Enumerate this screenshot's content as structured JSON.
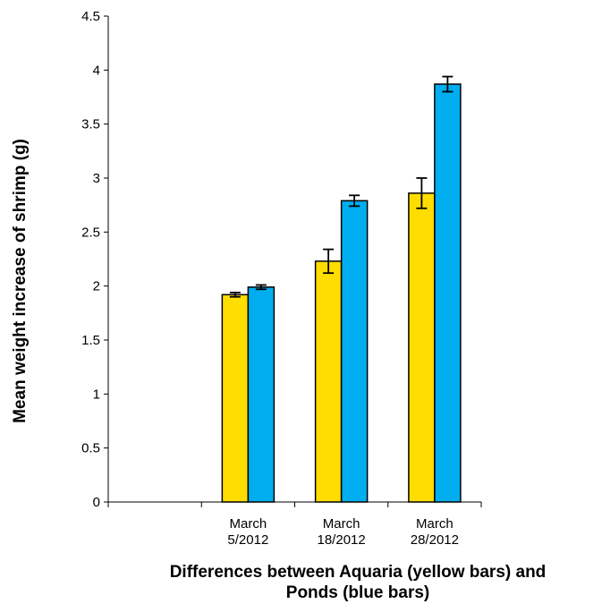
{
  "chart_data": {
    "type": "bar",
    "title": "",
    "xlabel_lines": [
      "Differences between Aquaria (yellow bars) and",
      "Ponds (blue bars)"
    ],
    "ylabel": "Mean weight increase of shrimp (g)",
    "ylim": [
      0,
      4.5
    ],
    "yticks": [
      "0",
      "0.5",
      "1",
      "1.5",
      "2",
      "2.5",
      "3",
      "3.5",
      "4",
      "4.5"
    ],
    "categories": [
      {
        "lines": [
          "",
          ""
        ]
      },
      {
        "lines": [
          "March",
          "5/2012"
        ]
      },
      {
        "lines": [
          "March",
          "18/2012"
        ]
      },
      {
        "lines": [
          "March",
          "28/2012"
        ]
      }
    ],
    "series": [
      {
        "color": "#FFDD00",
        "values": [
          null,
          1.92,
          2.23,
          2.86
        ],
        "errors": [
          null,
          0.02,
          0.11,
          0.14
        ]
      },
      {
        "color": "#00AEEF",
        "values": [
          null,
          1.99,
          2.79,
          3.87
        ],
        "errors": [
          null,
          0.02,
          0.05,
          0.07
        ]
      }
    ],
    "grid": false,
    "legend": "none"
  }
}
